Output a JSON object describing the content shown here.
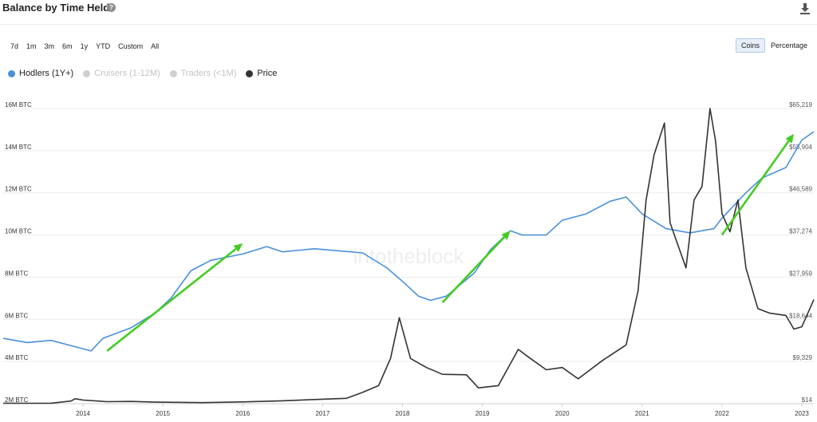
{
  "header": {
    "title": "Balance by Time Held",
    "help_icon": "question-icon",
    "download_icon": "download-icon"
  },
  "ranges": [
    "7d",
    "1m",
    "3m",
    "6m",
    "1y",
    "YTD",
    "Custom",
    "All"
  ],
  "unit_toggle": {
    "options": [
      "Coins",
      "Percentage"
    ],
    "selected": "Coins"
  },
  "legend": [
    {
      "name": "Hodlers (1Y+)",
      "color": "#4a90d9",
      "visible": true
    },
    {
      "name": "Cruisers (1-12M)",
      "color": "#cfcfcf",
      "visible": false
    },
    {
      "name": "Traders (<1M)",
      "color": "#cfcfcf",
      "visible": false
    },
    {
      "name": "Price",
      "color": "#333333",
      "visible": true
    }
  ],
  "watermark": "intotheblock",
  "chart_data": {
    "type": "line",
    "y_left": {
      "ticks": [
        "2M BTC",
        "4M BTC",
        "6M BTC",
        "8M BTC",
        "10M BTC",
        "12M BTC",
        "14M BTC",
        "16M BTC"
      ],
      "range": [
        2000000,
        16000000
      ]
    },
    "y_right": {
      "ticks": [
        "$14",
        "$9,329",
        "$18,644",
        "$27,959",
        "$37,274",
        "$46,589",
        "$55,904",
        "$65,219"
      ],
      "range": [
        14,
        65219
      ]
    },
    "x_ticks": [
      "2014",
      "2015",
      "2016",
      "2017",
      "2018",
      "2019",
      "2020",
      "2021",
      "2022",
      "2023"
    ],
    "x_range": [
      2013.0,
      2023.15
    ],
    "series": [
      {
        "name": "Hodlers (1Y+)",
        "color": "#4a90d9",
        "axis": "left",
        "points": [
          [
            2013.0,
            5100000
          ],
          [
            2013.3,
            4900000
          ],
          [
            2013.6,
            5000000
          ],
          [
            2013.9,
            4700000
          ],
          [
            2014.1,
            4500000
          ],
          [
            2014.25,
            5100000
          ],
          [
            2014.6,
            5600000
          ],
          [
            2014.9,
            6300000
          ],
          [
            2015.1,
            7000000
          ],
          [
            2015.35,
            8300000
          ],
          [
            2015.6,
            8800000
          ],
          [
            2016.0,
            9100000
          ],
          [
            2016.3,
            9450000
          ],
          [
            2016.5,
            9200000
          ],
          [
            2016.9,
            9350000
          ],
          [
            2017.2,
            9250000
          ],
          [
            2017.5,
            9150000
          ],
          [
            2017.8,
            8450000
          ],
          [
            2018.0,
            7800000
          ],
          [
            2018.2,
            7100000
          ],
          [
            2018.35,
            6900000
          ],
          [
            2018.55,
            7100000
          ],
          [
            2018.9,
            8200000
          ],
          [
            2019.1,
            9300000
          ],
          [
            2019.35,
            10200000
          ],
          [
            2019.5,
            10000000
          ],
          [
            2019.8,
            10000000
          ],
          [
            2020.0,
            10700000
          ],
          [
            2020.3,
            11000000
          ],
          [
            2020.6,
            11600000
          ],
          [
            2020.8,
            11800000
          ],
          [
            2021.0,
            11000000
          ],
          [
            2021.3,
            10300000
          ],
          [
            2021.6,
            10100000
          ],
          [
            2021.9,
            10300000
          ],
          [
            2022.0,
            10800000
          ],
          [
            2022.3,
            12000000
          ],
          [
            2022.5,
            12700000
          ],
          [
            2022.8,
            13200000
          ],
          [
            2023.0,
            14500000
          ],
          [
            2023.15,
            14900000
          ]
        ]
      },
      {
        "name": "Price",
        "color": "#333333",
        "axis": "right",
        "points": [
          [
            2013.0,
            100
          ],
          [
            2013.6,
            120
          ],
          [
            2013.85,
            600
          ],
          [
            2013.9,
            1100
          ],
          [
            2014.0,
            800
          ],
          [
            2014.3,
            450
          ],
          [
            2014.6,
            500
          ],
          [
            2014.9,
            350
          ],
          [
            2015.5,
            250
          ],
          [
            2016.0,
            400
          ],
          [
            2016.5,
            650
          ],
          [
            2017.0,
            1000
          ],
          [
            2017.3,
            1200
          ],
          [
            2017.5,
            2500
          ],
          [
            2017.7,
            4000
          ],
          [
            2017.85,
            10000
          ],
          [
            2017.96,
            19000
          ],
          [
            2018.1,
            10000
          ],
          [
            2018.3,
            8000
          ],
          [
            2018.5,
            6500
          ],
          [
            2018.8,
            6400
          ],
          [
            2018.95,
            3500
          ],
          [
            2019.2,
            4000
          ],
          [
            2019.45,
            12000
          ],
          [
            2019.6,
            10000
          ],
          [
            2019.8,
            7500
          ],
          [
            2020.0,
            8000
          ],
          [
            2020.2,
            5500
          ],
          [
            2020.5,
            9500
          ],
          [
            2020.8,
            13000
          ],
          [
            2020.95,
            25000
          ],
          [
            2021.05,
            45000
          ],
          [
            2021.15,
            55000
          ],
          [
            2021.28,
            62000
          ],
          [
            2021.35,
            40000
          ],
          [
            2021.45,
            35000
          ],
          [
            2021.55,
            30000
          ],
          [
            2021.65,
            45000
          ],
          [
            2021.75,
            48000
          ],
          [
            2021.85,
            65219
          ],
          [
            2021.92,
            58000
          ],
          [
            2022.0,
            42000
          ],
          [
            2022.1,
            38000
          ],
          [
            2022.2,
            45000
          ],
          [
            2022.3,
            30000
          ],
          [
            2022.45,
            21000
          ],
          [
            2022.6,
            20000
          ],
          [
            2022.8,
            19500
          ],
          [
            2022.9,
            16500
          ],
          [
            2023.0,
            17000
          ],
          [
            2023.15,
            23000
          ]
        ]
      }
    ],
    "annotations": [
      {
        "type": "arrow",
        "color": "#44cc22",
        "from": [
          2014.3,
          4500000
        ],
        "to": [
          2016.0,
          9600000
        ]
      },
      {
        "type": "arrow",
        "color": "#44cc22",
        "from": [
          2018.5,
          6800000
        ],
        "to": [
          2019.35,
          10200000
        ]
      },
      {
        "type": "arrow",
        "color": "#44cc22",
        "from": [
          2022.0,
          10000000
        ],
        "to": [
          2022.9,
          14800000
        ]
      }
    ],
    "grid": true
  }
}
